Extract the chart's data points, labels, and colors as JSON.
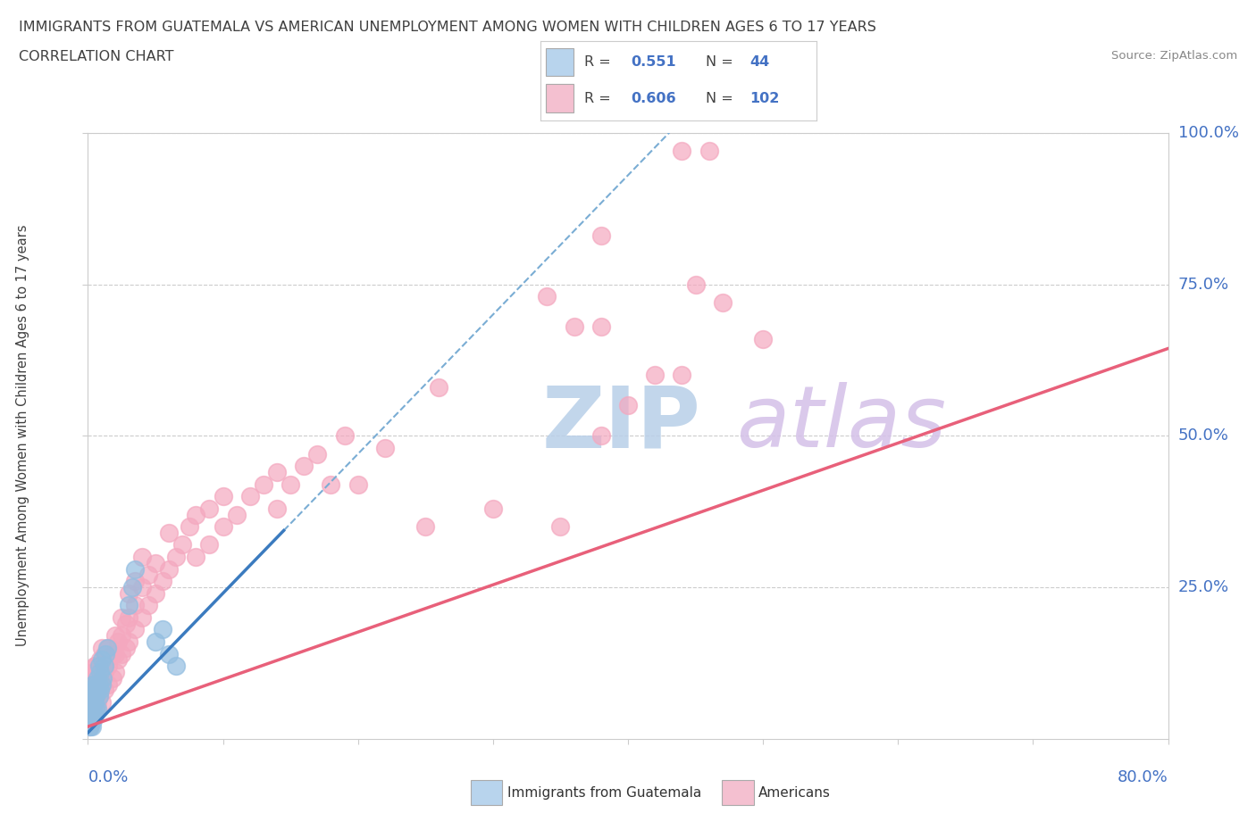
{
  "title_line1": "IMMIGRANTS FROM GUATEMALA VS AMERICAN UNEMPLOYMENT AMONG WOMEN WITH CHILDREN AGES 6 TO 17 YEARS",
  "title_line2": "CORRELATION CHART",
  "source_text": "Source: ZipAtlas.com",
  "ylabel": "Unemployment Among Women with Children Ages 6 to 17 years",
  "xlim": [
    0,
    0.8
  ],
  "ylim": [
    0,
    1.0
  ],
  "blue_R": 0.551,
  "blue_N": 44,
  "pink_R": 0.606,
  "pink_N": 102,
  "blue_color": "#92bde0",
  "pink_color": "#f4a8bf",
  "blue_line_color": "#3b7bbf",
  "pink_line_color": "#e8607a",
  "blue_dash_color": "#7aadd4",
  "axis_label_color": "#4472c4",
  "title_color": "#404040",
  "legend_blue_color": "#b8d4ed",
  "legend_pink_color": "#f4c0d0",
  "watermark_zip_color": "#b8cfe8",
  "watermark_atlas_color": "#d4c0e8",
  "background_color": "#ffffff",
  "blue_scatter": [
    [
      0.001,
      0.02
    ],
    [
      0.001,
      0.03
    ],
    [
      0.001,
      0.04
    ],
    [
      0.001,
      0.05
    ],
    [
      0.002,
      0.02
    ],
    [
      0.002,
      0.03
    ],
    [
      0.002,
      0.05
    ],
    [
      0.002,
      0.06
    ],
    [
      0.002,
      0.07
    ],
    [
      0.003,
      0.02
    ],
    [
      0.003,
      0.04
    ],
    [
      0.003,
      0.06
    ],
    [
      0.003,
      0.08
    ],
    [
      0.004,
      0.03
    ],
    [
      0.004,
      0.05
    ],
    [
      0.004,
      0.07
    ],
    [
      0.004,
      0.09
    ],
    [
      0.005,
      0.04
    ],
    [
      0.005,
      0.06
    ],
    [
      0.005,
      0.08
    ],
    [
      0.006,
      0.05
    ],
    [
      0.006,
      0.07
    ],
    [
      0.006,
      0.09
    ],
    [
      0.007,
      0.05
    ],
    [
      0.007,
      0.08
    ],
    [
      0.007,
      0.1
    ],
    [
      0.008,
      0.07
    ],
    [
      0.008,
      0.09
    ],
    [
      0.008,
      0.12
    ],
    [
      0.009,
      0.08
    ],
    [
      0.009,
      0.11
    ],
    [
      0.01,
      0.09
    ],
    [
      0.01,
      0.13
    ],
    [
      0.011,
      0.1
    ],
    [
      0.012,
      0.12
    ],
    [
      0.013,
      0.14
    ],
    [
      0.014,
      0.15
    ],
    [
      0.03,
      0.22
    ],
    [
      0.033,
      0.25
    ],
    [
      0.035,
      0.28
    ],
    [
      0.05,
      0.16
    ],
    [
      0.055,
      0.18
    ],
    [
      0.06,
      0.14
    ],
    [
      0.065,
      0.12
    ]
  ],
  "pink_scatter": [
    [
      0.001,
      0.02
    ],
    [
      0.001,
      0.04
    ],
    [
      0.001,
      0.06
    ],
    [
      0.002,
      0.03
    ],
    [
      0.002,
      0.05
    ],
    [
      0.002,
      0.07
    ],
    [
      0.002,
      0.08
    ],
    [
      0.003,
      0.04
    ],
    [
      0.003,
      0.06
    ],
    [
      0.003,
      0.08
    ],
    [
      0.003,
      0.1
    ],
    [
      0.004,
      0.05
    ],
    [
      0.004,
      0.07
    ],
    [
      0.004,
      0.09
    ],
    [
      0.004,
      0.11
    ],
    [
      0.005,
      0.04
    ],
    [
      0.005,
      0.06
    ],
    [
      0.005,
      0.08
    ],
    [
      0.005,
      0.1
    ],
    [
      0.005,
      0.12
    ],
    [
      0.006,
      0.05
    ],
    [
      0.006,
      0.07
    ],
    [
      0.006,
      0.09
    ],
    [
      0.006,
      0.12
    ],
    [
      0.007,
      0.06
    ],
    [
      0.007,
      0.08
    ],
    [
      0.007,
      0.11
    ],
    [
      0.008,
      0.07
    ],
    [
      0.008,
      0.09
    ],
    [
      0.008,
      0.12
    ],
    [
      0.009,
      0.08
    ],
    [
      0.009,
      0.1
    ],
    [
      0.009,
      0.13
    ],
    [
      0.01,
      0.06
    ],
    [
      0.01,
      0.09
    ],
    [
      0.01,
      0.12
    ],
    [
      0.01,
      0.15
    ],
    [
      0.012,
      0.08
    ],
    [
      0.012,
      0.11
    ],
    [
      0.012,
      0.14
    ],
    [
      0.015,
      0.09
    ],
    [
      0.015,
      0.12
    ],
    [
      0.015,
      0.15
    ],
    [
      0.018,
      0.1
    ],
    [
      0.018,
      0.14
    ],
    [
      0.02,
      0.11
    ],
    [
      0.02,
      0.14
    ],
    [
      0.02,
      0.17
    ],
    [
      0.022,
      0.13
    ],
    [
      0.022,
      0.16
    ],
    [
      0.025,
      0.14
    ],
    [
      0.025,
      0.17
    ],
    [
      0.025,
      0.2
    ],
    [
      0.028,
      0.15
    ],
    [
      0.028,
      0.19
    ],
    [
      0.03,
      0.16
    ],
    [
      0.03,
      0.2
    ],
    [
      0.03,
      0.24
    ],
    [
      0.035,
      0.18
    ],
    [
      0.035,
      0.22
    ],
    [
      0.035,
      0.26
    ],
    [
      0.04,
      0.2
    ],
    [
      0.04,
      0.25
    ],
    [
      0.04,
      0.3
    ],
    [
      0.045,
      0.22
    ],
    [
      0.045,
      0.27
    ],
    [
      0.05,
      0.24
    ],
    [
      0.05,
      0.29
    ],
    [
      0.055,
      0.26
    ],
    [
      0.06,
      0.28
    ],
    [
      0.06,
      0.34
    ],
    [
      0.065,
      0.3
    ],
    [
      0.07,
      0.32
    ],
    [
      0.075,
      0.35
    ],
    [
      0.08,
      0.3
    ],
    [
      0.08,
      0.37
    ],
    [
      0.09,
      0.32
    ],
    [
      0.09,
      0.38
    ],
    [
      0.1,
      0.35
    ],
    [
      0.1,
      0.4
    ],
    [
      0.11,
      0.37
    ],
    [
      0.12,
      0.4
    ],
    [
      0.13,
      0.42
    ],
    [
      0.14,
      0.38
    ],
    [
      0.14,
      0.44
    ],
    [
      0.15,
      0.42
    ],
    [
      0.16,
      0.45
    ],
    [
      0.17,
      0.47
    ],
    [
      0.18,
      0.42
    ],
    [
      0.19,
      0.5
    ],
    [
      0.2,
      0.42
    ],
    [
      0.22,
      0.48
    ],
    [
      0.25,
      0.35
    ],
    [
      0.3,
      0.38
    ],
    [
      0.35,
      0.35
    ],
    [
      0.38,
      0.5
    ],
    [
      0.4,
      0.55
    ],
    [
      0.42,
      0.6
    ],
    [
      0.44,
      0.6
    ],
    [
      0.45,
      0.75
    ],
    [
      0.47,
      0.72
    ],
    [
      0.5,
      0.66
    ]
  ],
  "pink_outliers": [
    [
      0.44,
      0.97
    ],
    [
      0.46,
      0.97
    ],
    [
      0.38,
      0.83
    ],
    [
      0.34,
      0.73
    ],
    [
      0.36,
      0.68
    ],
    [
      0.26,
      0.58
    ],
    [
      0.38,
      0.68
    ]
  ],
  "blue_line_x": [
    0.0,
    0.145
  ],
  "blue_line_y_start": 0.01,
  "blue_line_slope": 2.3,
  "pink_line_x": [
    0.0,
    0.8
  ],
  "pink_line_y_start": 0.02,
  "pink_line_slope": 0.78
}
